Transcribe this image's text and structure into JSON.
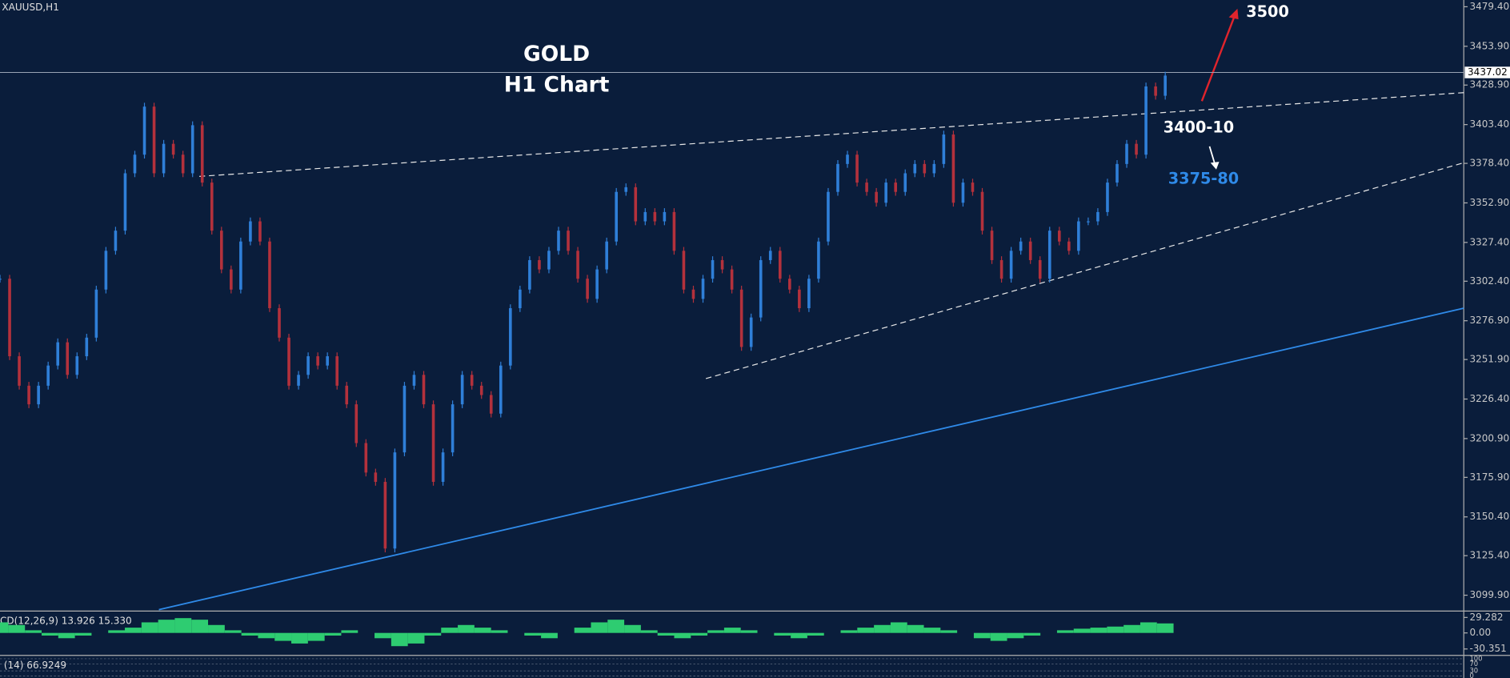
{
  "chart_data": {
    "type": "candlestick",
    "title": "GOLD",
    "subtitle": "H1 Chart",
    "symbol": "XAUUSD,H1",
    "values": [
      3304,
      3254,
      3235,
      3223,
      3235,
      3248,
      3263,
      3242,
      3254,
      3266,
      3297,
      3322,
      3335,
      3372,
      3384,
      3415,
      3372,
      3391,
      3384,
      3372,
      3403,
      3366,
      3335,
      3310,
      3297,
      3328,
      3341,
      3328,
      3285,
      3266,
      3235,
      3242,
      3254,
      3248,
      3254,
      3235,
      3223,
      3198,
      3179,
      3173,
      3130,
      3192,
      3235,
      3242,
      3223,
      3173,
      3192,
      3223,
      3242,
      3235,
      3229,
      3217,
      3248,
      3285,
      3297,
      3316,
      3310,
      3322,
      3335,
      3322,
      3304,
      3291,
      3310,
      3328,
      3360,
      3363,
      3341,
      3347,
      3341,
      3347,
      3322,
      3297,
      3291,
      3304,
      3316,
      3310,
      3297,
      3260,
      3279,
      3316,
      3322,
      3304,
      3297,
      3285,
      3304,
      3328,
      3360,
      3378,
      3384,
      3366,
      3360,
      3353,
      3366,
      3360,
      3372,
      3378,
      3372,
      3378,
      3397,
      3353,
      3366,
      3360,
      3335,
      3316,
      3304,
      3322,
      3328,
      3316,
      3304,
      3335,
      3328,
      3322,
      3341,
      3341,
      3347,
      3366,
      3378,
      3391,
      3384,
      3428,
      3422,
      3435
    ],
    "up_color": "#2f7fd8",
    "down_color": "#b3313c",
    "xlim": [
      0,
      152
    ],
    "ylim": [
      3090.6,
      3483.75
    ],
    "yticks": [
      {
        "value": 3479.4,
        "label": "3479.40"
      },
      {
        "value": 3453.9,
        "label": "3453.90"
      },
      {
        "value": 3428.9,
        "label": "3428.90"
      },
      {
        "value": 3403.4,
        "label": "3403.40"
      },
      {
        "value": 3378.4,
        "label": "3378.40"
      },
      {
        "value": 3352.9,
        "label": "3352.90"
      },
      {
        "value": 3327.4,
        "label": "3327.40"
      },
      {
        "value": 3302.4,
        "label": "3302.40"
      },
      {
        "value": 3276.9,
        "label": "3276.90"
      },
      {
        "value": 3251.9,
        "label": "3251.90"
      },
      {
        "value": 3226.4,
        "label": "3226.40"
      },
      {
        "value": 3200.9,
        "label": "3200.90"
      },
      {
        "value": 3175.9,
        "label": "3175.90"
      },
      {
        "value": 3150.4,
        "label": "3150.40"
      },
      {
        "value": 3125.4,
        "label": "3125.40"
      },
      {
        "value": 3099.9,
        "label": "3099.90"
      }
    ],
    "last_price": 3437.02,
    "trendlines": [
      {
        "points": [
          [
            20.7,
            3370
          ],
          [
            152,
            3424
          ]
        ],
        "color": "#e8e8e8",
        "dashed": true
      },
      {
        "points": [
          [
            73.3,
            3239.6
          ],
          [
            152,
            3378.8
          ]
        ],
        "color": "#e8e8e8",
        "dashed": true
      },
      {
        "points": [
          [
            16.5,
            3090.6
          ],
          [
            152,
            3285
          ]
        ],
        "color": "#2f8ae8",
        "dashed": false
      }
    ],
    "annotations": [
      {
        "text": "3500",
        "color": "#ffffff"
      },
      {
        "text": "3400-10",
        "color": "#ffffff"
      },
      {
        "text": "3375-80",
        "color": "#2f8ae8"
      }
    ],
    "macd": {
      "label": "CD(12,26,9) 13.926 15.330",
      "color": "#2ecc71",
      "ylim": [
        -39.7,
        38.6
      ],
      "yticks": [
        29.282,
        {
          "value": 0,
          "label": "0.00"
        },
        -30.351
      ],
      "values": [
        20,
        15,
        5,
        -5,
        -10,
        -5,
        0,
        5,
        10,
        20,
        25,
        28,
        25,
        15,
        5,
        -5,
        -10,
        -15,
        -20,
        -15,
        -5,
        5,
        0,
        -10,
        -25,
        -20,
        -5,
        10,
        15,
        10,
        5,
        0,
        -5,
        -10,
        0,
        10,
        20,
        25,
        15,
        5,
        -5,
        -10,
        -5,
        5,
        10,
        5,
        0,
        -5,
        -10,
        -5,
        0,
        5,
        10,
        15,
        20,
        15,
        10,
        5,
        0,
        -10,
        -15,
        -10,
        -5,
        0,
        5,
        8,
        10,
        12,
        15,
        20,
        18
      ]
    },
    "rsi": {
      "label": "(14) 66.9249",
      "ylim": [
        0,
        100
      ],
      "yticks": [
        100,
        70,
        30,
        0
      ]
    }
  }
}
